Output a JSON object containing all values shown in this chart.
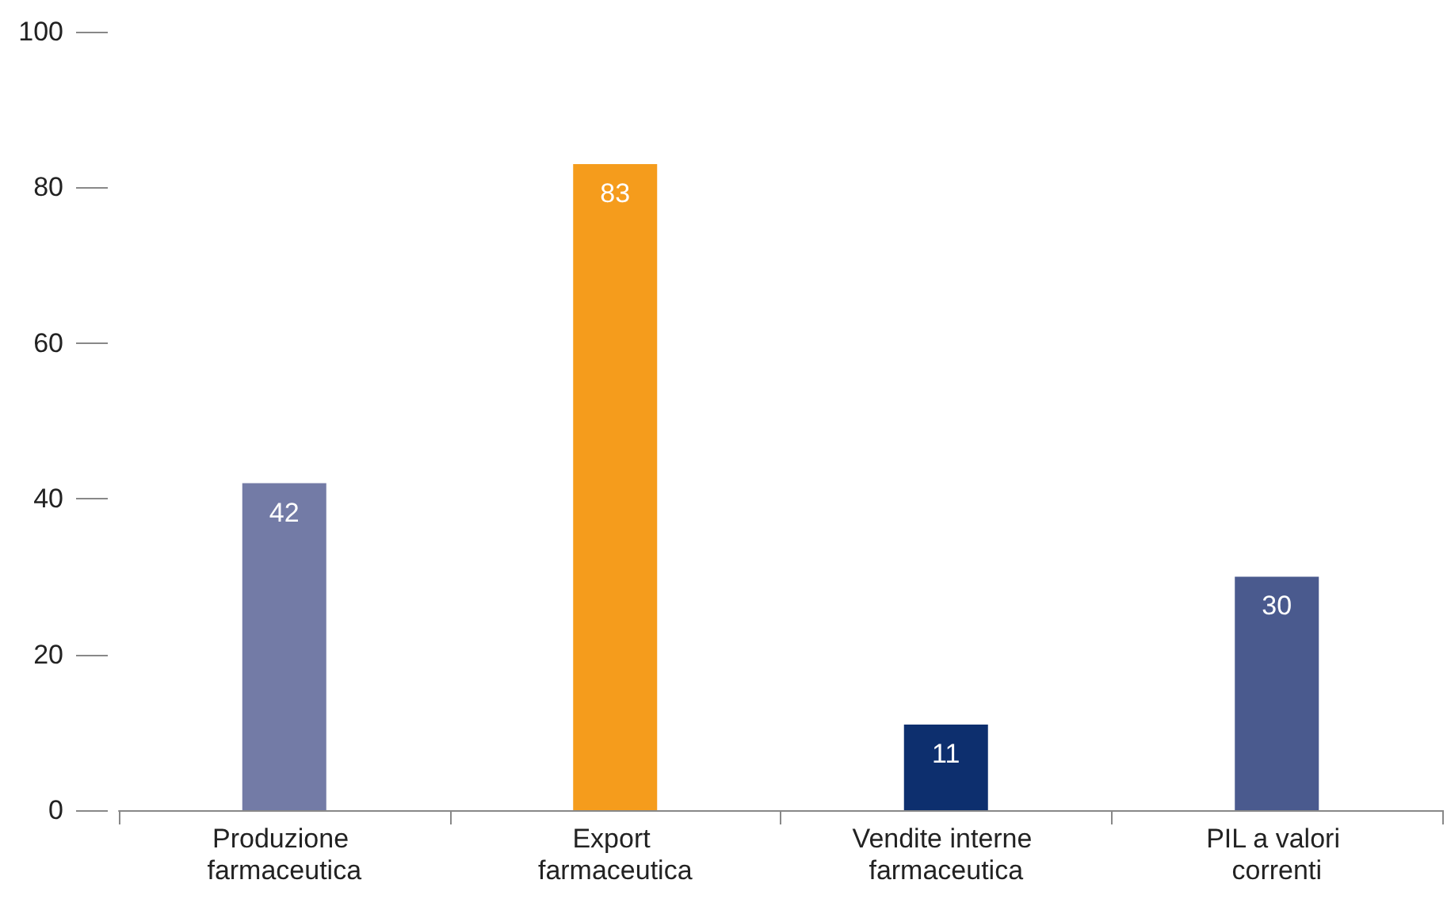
{
  "chart_data": {
    "type": "bar",
    "categories": [
      "Produzione farmaceutica",
      "Export farmaceutica",
      "Vendite interne farmaceutica",
      "PIL a valori correnti"
    ],
    "values": [
      42,
      83,
      11,
      30
    ],
    "colors": [
      "#737ba6",
      "#f59c1c",
      "#0d2f6e",
      "#4a5a8e"
    ],
    "ylim": [
      0,
      100
    ],
    "yticks": [
      0,
      20,
      40,
      60,
      80,
      100
    ],
    "data_labels": true
  }
}
